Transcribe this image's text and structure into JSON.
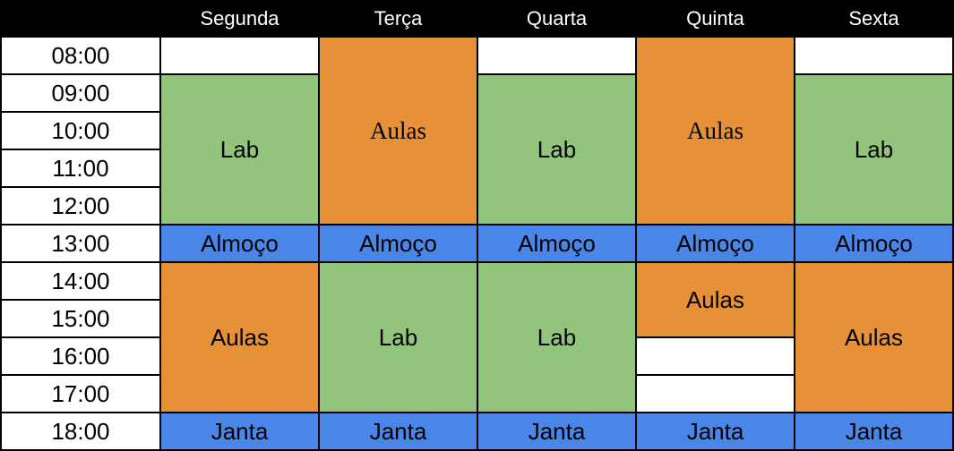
{
  "colors": {
    "header_bg": "#000000",
    "header_text": "#ffffff",
    "lab": "#93c47d",
    "aulas": "#e69138",
    "meal": "#4a86e8",
    "free": "#ffffff",
    "border": "#000000"
  },
  "days": [
    "Segunda",
    "Terça",
    "Quarta",
    "Quinta",
    "Sexta"
  ],
  "times": [
    "08:00",
    "09:00",
    "10:00",
    "11:00",
    "12:00",
    "13:00",
    "14:00",
    "15:00",
    "16:00",
    "17:00",
    "18:00"
  ],
  "blocks": {
    "segunda_lab": "Lab",
    "segunda_almoco": "Almoço",
    "segunda_aulas": "Aulas",
    "segunda_janta": "Janta",
    "terca_aulas": "Aulas",
    "terca_almoco": "Almoço",
    "terca_lab": "Lab",
    "terca_janta": "Janta",
    "quarta_lab_am": "Lab",
    "quarta_almoco": "Almoço",
    "quarta_lab_pm": "Lab",
    "quarta_janta": "Janta",
    "quinta_aulas_am": "Aulas",
    "quinta_almoco": "Almoço",
    "quinta_aulas_pm": "Aulas",
    "quinta_janta": "Janta",
    "sexta_lab": "Lab",
    "sexta_almoco": "Almoço",
    "sexta_aulas": "Aulas",
    "sexta_janta": "Janta"
  }
}
